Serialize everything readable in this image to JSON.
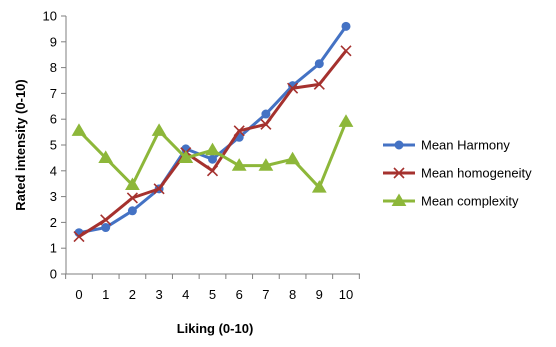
{
  "chart_data": {
    "type": "line",
    "title": "",
    "xlabel": "Liking (0-10)",
    "ylabel": "Rated intensity (0-10)",
    "xlim": [
      0,
      10
    ],
    "ylim": [
      0,
      10
    ],
    "x": [
      0,
      1,
      2,
      3,
      4,
      5,
      6,
      7,
      8,
      9,
      10
    ],
    "x_tick_labels": [
      "0",
      "1",
      "2",
      "3",
      "4",
      "5",
      "6",
      "7",
      "8",
      "9",
      "10"
    ],
    "y_tick_labels": [
      "0",
      "1",
      "2",
      "3",
      "4",
      "5",
      "6",
      "7",
      "8",
      "9",
      "10"
    ],
    "grid": false,
    "legend_position": "right",
    "series": [
      {
        "name": "Mean Harmony",
        "color": "#4472C4",
        "marker": "circle",
        "values": [
          1.6,
          1.8,
          2.45,
          3.3,
          4.85,
          4.45,
          5.3,
          6.2,
          7.3,
          8.15,
          9.6
        ]
      },
      {
        "name": "Mean homogeneity",
        "color": "#A5312E",
        "marker": "x",
        "values": [
          1.45,
          2.1,
          2.95,
          3.3,
          4.7,
          4.0,
          5.55,
          5.8,
          7.2,
          7.35,
          8.65
        ]
      },
      {
        "name": "Mean complexity",
        "color": "#8DB73A",
        "marker": "triangle",
        "values": [
          5.55,
          4.5,
          3.45,
          5.55,
          4.5,
          4.8,
          4.2,
          4.2,
          4.45,
          3.35,
          5.9
        ]
      }
    ]
  }
}
